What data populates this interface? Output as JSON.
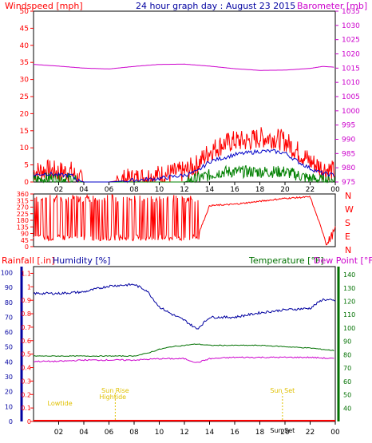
{
  "header": {
    "left_label": "Windspeed [mph]",
    "title": "24 hour graph day : August 23 2015",
    "right_label": "Barometer [mb]"
  },
  "colors": {
    "wind": "#ff0000",
    "gust_dark_green": "#008000",
    "avg_blue": "#0000c8",
    "barometer": "#cc00cc",
    "rain": "#ff0000",
    "humidity": "#0000a0",
    "temperature": "#007000",
    "dew_point": "#cc00cc",
    "sun": "#e0c000",
    "frame": "#000000"
  },
  "x_ticks": [
    "02",
    "04",
    "06",
    "08",
    "10",
    "12",
    "14",
    "16",
    "18",
    "20",
    "22",
    "00"
  ],
  "chart_data": [
    {
      "type": "line",
      "name": "windspeed_barometer",
      "left_axis": {
        "label": "Windspeed [mph]",
        "min": 0,
        "max": 50,
        "ticks": [
          0,
          5,
          10,
          15,
          20,
          25,
          30,
          35,
          40,
          45,
          50
        ]
      },
      "right_axis": {
        "label": "Barometer [mb]",
        "min": 975,
        "max": 1035,
        "ticks": [
          975,
          980,
          985,
          990,
          995,
          1000,
          1005,
          1010,
          1015,
          1020,
          1025,
          1030,
          1035
        ]
      },
      "x_range_hours": [
        0,
        24
      ],
      "series": [
        {
          "key": "gust",
          "hours": [
            0,
            1,
            2,
            3,
            3.5,
            4,
            6,
            8,
            10,
            12,
            13,
            14,
            15,
            16,
            17,
            18,
            19,
            20,
            21,
            22,
            23,
            24
          ],
          "values": [
            3,
            3.5,
            3,
            3,
            1,
            0,
            0,
            1,
            2,
            3,
            5,
            9,
            11,
            12,
            12,
            13,
            13,
            12,
            9,
            6,
            4,
            3
          ]
        },
        {
          "key": "average",
          "hours": [
            0,
            1,
            2,
            3,
            3.5,
            4,
            6,
            8,
            10,
            12,
            13,
            14,
            15,
            16,
            17,
            18,
            19,
            20,
            21,
            22,
            23,
            24
          ],
          "values": [
            2,
            2.5,
            2,
            2,
            0.5,
            0,
            0,
            0.5,
            1,
            2,
            3,
            6,
            7,
            8,
            8.5,
            9,
            9,
            8.5,
            6,
            4,
            2.5,
            2
          ]
        },
        {
          "key": "minimum",
          "hours": [
            0,
            1,
            2,
            3,
            3.5,
            4,
            6,
            8,
            10,
            12,
            13,
            14,
            15,
            16,
            17,
            18,
            19,
            20,
            21,
            22,
            23,
            24
          ],
          "values": [
            0.5,
            1,
            1,
            1,
            0,
            0,
            0,
            0,
            0,
            0,
            1,
            2,
            3,
            3,
            3,
            3,
            3,
            3,
            2,
            1,
            0.5,
            0.5
          ]
        },
        {
          "key": "barometer",
          "hours": [
            0,
            2,
            4,
            6,
            8,
            10,
            12,
            14,
            16,
            18,
            20,
            22,
            23,
            24
          ],
          "values": [
            1016.3,
            1015.7,
            1015,
            1014.7,
            1015.6,
            1016.3,
            1016.4,
            1015.7,
            1014.8,
            1014.2,
            1014.3,
            1014.9,
            1015.6,
            1015.3
          ]
        }
      ]
    },
    {
      "type": "line",
      "name": "wind_direction",
      "left_axis": {
        "min": 0,
        "max": 360,
        "ticks": [
          0,
          45,
          90,
          135,
          180,
          225,
          270,
          315,
          360
        ]
      },
      "right_labels": [
        "N",
        "W",
        "S",
        "E",
        "N"
      ],
      "series": [
        {
          "key": "direction",
          "hours": [
            0,
            2,
            4,
            6,
            8,
            10,
            12,
            13,
            14,
            16,
            18,
            20,
            22,
            23.2,
            23.4,
            23.6,
            24
          ],
          "values": [
            150,
            60,
            40,
            80,
            300,
            120,
            60,
            60,
            280,
            290,
            310,
            330,
            340,
            50,
            20,
            60,
            110
          ]
        }
      ]
    },
    {
      "type": "line",
      "name": "rain_humidity_temperature_dewpoint",
      "left_axis": {
        "label": "Rainfall [.in]",
        "min": 0,
        "max": 1.0,
        "ticks": [
          0,
          0.1,
          0.2,
          0.3,
          0.4,
          0.5,
          0.6,
          0.7,
          0.8,
          0.9,
          1,
          1.1
        ]
      },
      "humidity_axis": {
        "label": "Humidity [%]",
        "min": 0,
        "max": 100,
        "ticks": [
          0,
          10,
          20,
          30,
          40,
          50,
          60,
          70,
          80,
          90,
          100
        ]
      },
      "right_axis": {
        "label": "Temperature [°F]",
        "min": 30,
        "max": 140,
        "ticks": [
          40,
          50,
          60,
          70,
          80,
          90,
          100,
          110,
          120,
          130,
          140
        ]
      },
      "dew_label": "Dew Point [°F]",
      "series": [
        {
          "key": "rainfall",
          "hours": [
            0,
            24
          ],
          "values": [
            0,
            0
          ]
        },
        {
          "key": "humidity",
          "hours": [
            0,
            2,
            4,
            6,
            8,
            9,
            10,
            11,
            12,
            13,
            14,
            16,
            18,
            20,
            22,
            23,
            24
          ],
          "values": [
            86,
            86,
            87,
            91,
            92,
            88,
            77,
            72,
            68,
            62,
            70,
            70,
            73,
            75,
            76,
            82,
            81
          ]
        },
        {
          "key": "temperature",
          "hours": [
            0,
            2,
            4,
            6,
            8,
            9,
            10,
            11,
            12,
            13,
            14,
            16,
            18,
            20,
            22,
            24
          ],
          "values": [
            79,
            79,
            79,
            79,
            79,
            81,
            84,
            86,
            87,
            88,
            87,
            87,
            87,
            86,
            85,
            83
          ]
        },
        {
          "key": "dew_point",
          "hours": [
            0,
            2,
            4,
            6,
            8,
            10,
            12,
            13,
            14,
            16,
            18,
            20,
            22,
            24
          ],
          "values": [
            75,
            75,
            76,
            76,
            76,
            77,
            77,
            74,
            77,
            78,
            78,
            78,
            78,
            77
          ]
        }
      ],
      "annotations": [
        {
          "text": "Lowtide",
          "hour": 2.1,
          "level": 1
        },
        {
          "text": "Sun Rise",
          "hour": 6.5,
          "level": 3
        },
        {
          "text": "Hightide",
          "hour": 6.3,
          "level": 2
        },
        {
          "text": "Sun Set",
          "hour": 19.8,
          "level": 3
        },
        {
          "text": "Sun Set",
          "hour": 19.8,
          "level": 0
        }
      ]
    }
  ],
  "panel2_labels": {
    "rain": "Rainfall [.in]",
    "humidity": "Humidity [%]",
    "temperature": "Temperature [°F]",
    "dewpoint": "Dew Point [°F]"
  }
}
